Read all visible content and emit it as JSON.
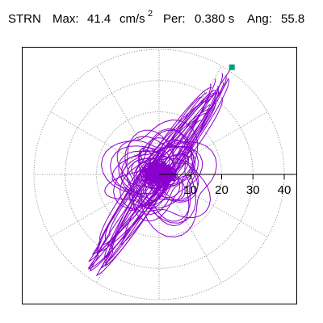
{
  "header": {
    "station": "STRN",
    "max_label": "Max:",
    "max_value": "41.4",
    "max_unit": "cm/s",
    "max_unit_exp": "2",
    "per_label": "Per:",
    "per_value": "0.380 s",
    "ang_label": "Ang:",
    "ang_value": "55.8"
  },
  "chart_data": {
    "type": "scatter",
    "title": "",
    "coordinate_system": "polar",
    "rlim": [
      0,
      40
    ],
    "radial_ticks": [
      "10",
      "20",
      "30",
      "40"
    ],
    "angular_grid_deg": [
      0,
      30,
      60,
      90,
      120,
      150,
      180,
      210,
      240,
      270,
      300,
      330
    ],
    "grid": true,
    "grid_color": "#888888",
    "trace_color": "#8a00cc",
    "marker_color": "#009e73",
    "peak_marker": {
      "r": 41.4,
      "angle_deg": 55.8
    }
  }
}
